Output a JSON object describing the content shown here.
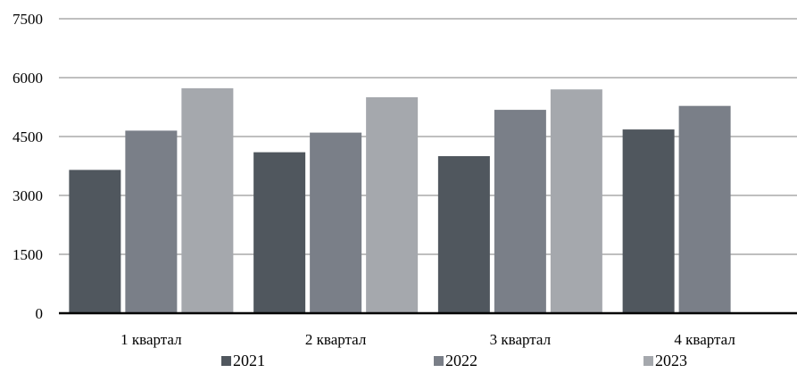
{
  "chart_data": {
    "type": "bar",
    "categories": [
      "1 квартал",
      "2 квартал",
      "3 квартал",
      "4 квартал"
    ],
    "series": [
      {
        "name": "2021",
        "values": [
          3650,
          4100,
          4000,
          4680
        ]
      },
      {
        "name": "2022",
        "values": [
          4650,
          4600,
          5180,
          5280
        ]
      },
      {
        "name": "2023",
        "values": [
          5730,
          5500,
          5700,
          null
        ]
      }
    ],
    "yticks": [
      "0",
      "1500",
      "3000",
      "4500",
      "6000",
      "7500"
    ],
    "ylim": [
      0,
      7500
    ],
    "grid": true,
    "legend_position": "bottom",
    "colors": [
      "#50575e",
      "#7a7f88",
      "#a5a8ad"
    ],
    "title": "",
    "xlabel": "",
    "ylabel": ""
  }
}
